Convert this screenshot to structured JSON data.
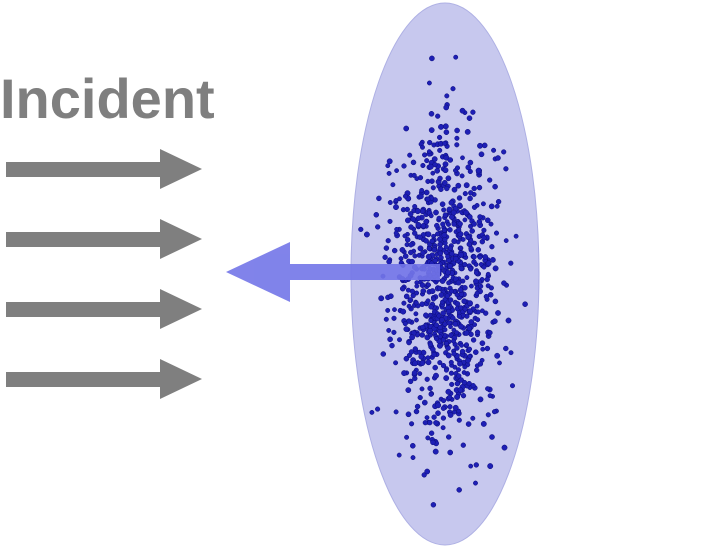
{
  "diagram": {
    "label": "Incident",
    "colors": {
      "label": "#7f7f7f",
      "incident_arrow": "#7f7f7f",
      "ellipse_fill": "#c7c8ee",
      "ellipse_stroke": "#aeb0e4",
      "particles": "#1e1fb5",
      "particle_edge": "#0b0c7a",
      "reflected_arrow": "#7376e8"
    },
    "particles": {
      "count": 950,
      "seed": 7
    }
  }
}
